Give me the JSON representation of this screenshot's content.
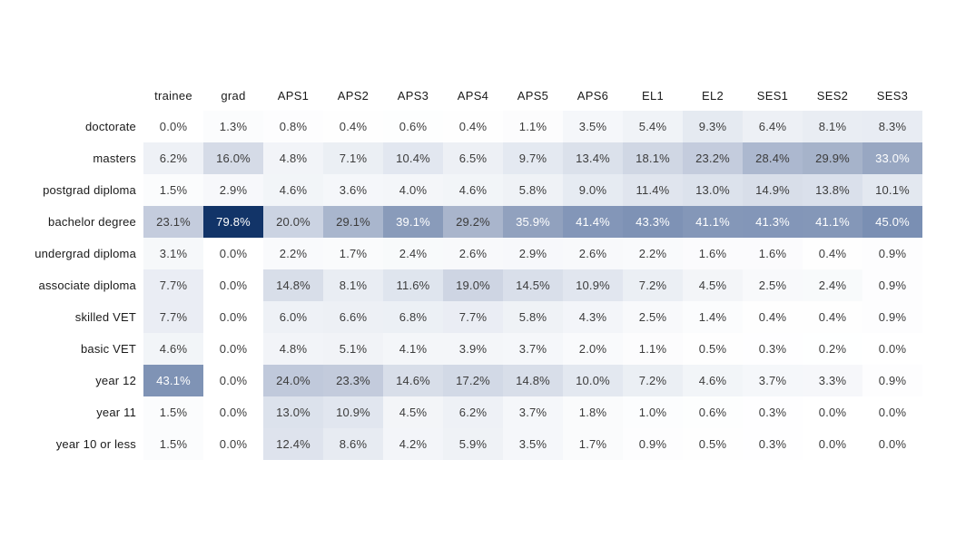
{
  "figure": {
    "background": "#ffffff",
    "value_text_color": "#3c3c3c",
    "label_text_color": "#1a1a1a",
    "light_value_text_color": "#ffffff"
  },
  "chart_data": {
    "type": "heatmap",
    "title": "",
    "unit": "%",
    "value_suffix": "%",
    "decimals": 1,
    "columns": [
      "trainee",
      "grad",
      "APS1",
      "APS2",
      "APS3",
      "APS4",
      "APS5",
      "APS6",
      "EL1",
      "EL2",
      "SES1",
      "SES2",
      "SES3"
    ],
    "rows": [
      "doctorate",
      "masters",
      "postgrad diploma",
      "bachelor degree",
      "undergrad diploma",
      "associate diploma",
      "skilled VET",
      "basic VET",
      "year 12",
      "year 11",
      "year 10 or less"
    ],
    "values": [
      [
        0.0,
        1.3,
        0.8,
        0.4,
        0.6,
        0.4,
        1.1,
        3.5,
        5.4,
        9.3,
        6.4,
        8.1,
        8.3
      ],
      [
        6.2,
        16.0,
        4.8,
        7.1,
        10.4,
        6.5,
        9.7,
        13.4,
        18.1,
        23.2,
        28.4,
        29.9,
        33.0
      ],
      [
        1.5,
        2.9,
        4.6,
        3.6,
        4.0,
        4.6,
        5.8,
        9.0,
        11.4,
        13.0,
        14.9,
        13.8,
        10.1
      ],
      [
        23.1,
        79.8,
        20.0,
        29.1,
        39.1,
        29.2,
        35.9,
        41.4,
        43.3,
        41.1,
        41.3,
        41.1,
        45.0
      ],
      [
        3.1,
        0.0,
        2.2,
        1.7,
        2.4,
        2.6,
        2.9,
        2.6,
        2.2,
        1.6,
        1.6,
        0.4,
        0.9
      ],
      [
        7.7,
        0.0,
        14.8,
        8.1,
        11.6,
        19.0,
        14.5,
        10.9,
        7.2,
        4.5,
        2.5,
        2.4,
        0.9
      ],
      [
        7.7,
        0.0,
        6.0,
        6.6,
        6.8,
        7.7,
        5.8,
        4.3,
        2.5,
        1.4,
        0.4,
        0.4,
        0.9
      ],
      [
        4.6,
        0.0,
        4.8,
        5.1,
        4.1,
        3.9,
        3.7,
        2.0,
        1.1,
        0.5,
        0.3,
        0.2,
        0.0
      ],
      [
        43.1,
        0.0,
        24.0,
        23.3,
        14.6,
        17.2,
        14.8,
        10.0,
        7.2,
        4.6,
        3.7,
        3.3,
        0.9
      ],
      [
        1.5,
        0.0,
        13.0,
        10.9,
        4.5,
        6.2,
        3.7,
        1.8,
        1.0,
        0.6,
        0.3,
        0.0,
        0.0
      ],
      [
        1.5,
        0.0,
        12.4,
        8.6,
        4.2,
        5.9,
        3.5,
        1.7,
        0.9,
        0.5,
        0.3,
        0.0,
        0.0
      ]
    ],
    "color_scale": {
      "description": "white to dark navy, mapped over data range 0 to 79.8",
      "anchors": [
        {
          "v": 0.0,
          "c": "#ffffff"
        },
        {
          "v": 10.1,
          "c": "#e3e8f0"
        },
        {
          "v": 23.1,
          "c": "#c4ccdd"
        },
        {
          "v": 33.0,
          "c": "#98a7c2"
        },
        {
          "v": 45.0,
          "c": "#7a8fb3"
        },
        {
          "v": 79.8,
          "c": "#123468"
        }
      ]
    },
    "white_text_threshold": 31,
    "legend": "none",
    "grid": "off"
  }
}
